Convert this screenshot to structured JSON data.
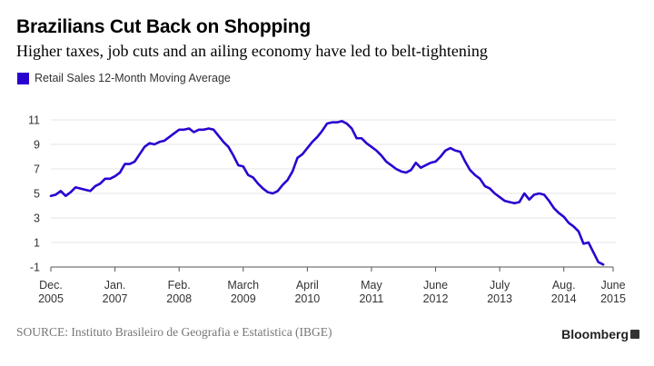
{
  "title": "Brazilians Cut Back on Shopping",
  "subtitle": "Higher taxes, job cuts and an ailing economy have led to belt-tightening",
  "source": "SOURCE: Instituto Brasileiro de Geografia e Estatistica (IBGE)",
  "brand": "Bloomberg",
  "brand_icon": "bloomberg-terminal-icon",
  "colors": {
    "series": "#2a00d1",
    "grid": "#e6e6e6",
    "axis": "#555555",
    "text": "#333333"
  },
  "chart_data": {
    "type": "line",
    "title": "Brazilians Cut Back on Shopping",
    "xlabel": "",
    "ylabel": "",
    "ylim": [
      -1,
      11
    ],
    "yticks": [
      -1,
      1,
      3,
      5,
      7,
      9,
      11
    ],
    "grid": true,
    "legend": "top-left",
    "x_start": "2005-12",
    "x_end": "2015-06",
    "xticks": [
      {
        "month": "Dec.",
        "year": "2005",
        "x": "2005-12"
      },
      {
        "month": "Jan.",
        "year": "2007",
        "x": "2007-01"
      },
      {
        "month": "Feb.",
        "year": "2008",
        "x": "2008-02"
      },
      {
        "month": "March",
        "year": "2009",
        "x": "2009-03"
      },
      {
        "month": "April",
        "year": "2010",
        "x": "2010-04"
      },
      {
        "month": "May",
        "year": "2011",
        "x": "2011-05"
      },
      {
        "month": "June",
        "year": "2012",
        "x": "2012-06"
      },
      {
        "month": "July",
        "year": "2013",
        "x": "2013-07"
      },
      {
        "month": "Aug.",
        "year": "2014",
        "x": "2014-08"
      },
      {
        "month": "June",
        "year": "2015",
        "x": "2015-06"
      }
    ],
    "series": [
      {
        "name": "Retail Sales 12-Month Moving Average",
        "color": "#2a00d1",
        "points": [
          [
            "2005-12",
            4.8
          ],
          [
            "2006-01",
            4.9
          ],
          [
            "2006-02",
            5.2
          ],
          [
            "2006-03",
            4.8
          ],
          [
            "2006-04",
            5.1
          ],
          [
            "2006-05",
            5.5
          ],
          [
            "2006-06",
            5.4
          ],
          [
            "2006-07",
            5.3
          ],
          [
            "2006-08",
            5.2
          ],
          [
            "2006-09",
            5.6
          ],
          [
            "2006-10",
            5.8
          ],
          [
            "2006-11",
            6.2
          ],
          [
            "2006-12",
            6.2
          ],
          [
            "2007-01",
            6.4
          ],
          [
            "2007-02",
            6.7
          ],
          [
            "2007-03",
            7.4
          ],
          [
            "2007-04",
            7.4
          ],
          [
            "2007-05",
            7.6
          ],
          [
            "2007-06",
            8.2
          ],
          [
            "2007-07",
            8.8
          ],
          [
            "2007-08",
            9.1
          ],
          [
            "2007-09",
            9.0
          ],
          [
            "2007-10",
            9.2
          ],
          [
            "2007-11",
            9.3
          ],
          [
            "2007-12",
            9.6
          ],
          [
            "2008-01",
            9.9
          ],
          [
            "2008-02",
            10.2
          ],
          [
            "2008-03",
            10.2
          ],
          [
            "2008-04",
            10.3
          ],
          [
            "2008-05",
            10.0
          ],
          [
            "2008-06",
            10.2
          ],
          [
            "2008-07",
            10.2
          ],
          [
            "2008-08",
            10.3
          ],
          [
            "2008-09",
            10.2
          ],
          [
            "2008-10",
            9.7
          ],
          [
            "2008-11",
            9.2
          ],
          [
            "2008-12",
            8.8
          ],
          [
            "2009-01",
            8.1
          ],
          [
            "2009-02",
            7.3
          ],
          [
            "2009-03",
            7.2
          ],
          [
            "2009-04",
            6.5
          ],
          [
            "2009-05",
            6.3
          ],
          [
            "2009-06",
            5.8
          ],
          [
            "2009-07",
            5.4
          ],
          [
            "2009-08",
            5.1
          ],
          [
            "2009-09",
            5.0
          ],
          [
            "2009-10",
            5.2
          ],
          [
            "2009-11",
            5.7
          ],
          [
            "2009-12",
            6.1
          ],
          [
            "2010-01",
            6.8
          ],
          [
            "2010-02",
            7.9
          ],
          [
            "2010-03",
            8.2
          ],
          [
            "2010-04",
            8.7
          ],
          [
            "2010-05",
            9.2
          ],
          [
            "2010-06",
            9.6
          ],
          [
            "2010-07",
            10.1
          ],
          [
            "2010-08",
            10.7
          ],
          [
            "2010-09",
            10.8
          ],
          [
            "2010-10",
            10.8
          ],
          [
            "2010-11",
            10.9
          ],
          [
            "2010-12",
            10.7
          ],
          [
            "2011-01",
            10.3
          ],
          [
            "2011-02",
            9.5
          ],
          [
            "2011-03",
            9.5
          ],
          [
            "2011-04",
            9.1
          ],
          [
            "2011-05",
            8.8
          ],
          [
            "2011-06",
            8.5
          ],
          [
            "2011-07",
            8.1
          ],
          [
            "2011-08",
            7.6
          ],
          [
            "2011-09",
            7.3
          ],
          [
            "2011-10",
            7.0
          ],
          [
            "2011-11",
            6.8
          ],
          [
            "2011-12",
            6.7
          ],
          [
            "2012-01",
            6.9
          ],
          [
            "2012-02",
            7.5
          ],
          [
            "2012-03",
            7.1
          ],
          [
            "2012-04",
            7.3
          ],
          [
            "2012-05",
            7.5
          ],
          [
            "2012-06",
            7.6
          ],
          [
            "2012-07",
            8.0
          ],
          [
            "2012-08",
            8.5
          ],
          [
            "2012-09",
            8.7
          ],
          [
            "2012-10",
            8.5
          ],
          [
            "2012-11",
            8.4
          ],
          [
            "2012-12",
            7.6
          ],
          [
            "2013-01",
            6.9
          ],
          [
            "2013-02",
            6.5
          ],
          [
            "2013-03",
            6.2
          ],
          [
            "2013-04",
            5.6
          ],
          [
            "2013-05",
            5.4
          ],
          [
            "2013-06",
            5.0
          ],
          [
            "2013-07",
            4.7
          ],
          [
            "2013-08",
            4.4
          ],
          [
            "2013-09",
            4.3
          ],
          [
            "2013-10",
            4.2
          ],
          [
            "2013-11",
            4.3
          ],
          [
            "2013-12",
            5.0
          ],
          [
            "2014-01",
            4.5
          ],
          [
            "2014-02",
            4.9
          ],
          [
            "2014-03",
            5.0
          ],
          [
            "2014-04",
            4.9
          ],
          [
            "2014-05",
            4.4
          ],
          [
            "2014-06",
            3.8
          ],
          [
            "2014-07",
            3.4
          ],
          [
            "2014-08",
            3.1
          ],
          [
            "2014-09",
            2.6
          ],
          [
            "2014-10",
            2.3
          ],
          [
            "2014-11",
            1.9
          ],
          [
            "2014-12",
            0.9
          ],
          [
            "2015-01",
            1.0
          ],
          [
            "2015-02",
            0.2
          ],
          [
            "2015-03",
            -0.6
          ],
          [
            "2015-04",
            -0.8
          ]
        ]
      }
    ]
  }
}
